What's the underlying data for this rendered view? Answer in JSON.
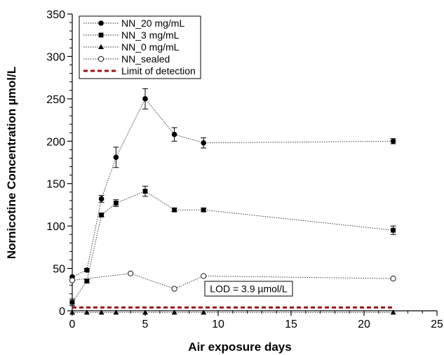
{
  "chart_data": {
    "type": "line",
    "xlabel": "Air exposure days",
    "ylabel": "Nornicotine Concentration µmol/L",
    "xlim": [
      0,
      25
    ],
    "ylim": [
      0,
      350
    ],
    "xticks": [
      0,
      5,
      10,
      15,
      20,
      25
    ],
    "yticks": [
      0,
      50,
      100,
      150,
      200,
      250,
      300,
      350
    ],
    "grid": false,
    "legend_position": "top-left",
    "series": [
      {
        "name": "NN_20 mg/mL",
        "marker": "filled-circle",
        "x": [
          0,
          1,
          2,
          3,
          5,
          7,
          9,
          22
        ],
        "y": [
          40,
          48,
          132,
          181,
          250,
          208,
          198,
          200
        ],
        "err": [
          0,
          2,
          4,
          12,
          12,
          8,
          6,
          3
        ]
      },
      {
        "name": "NN_3 mg/mL",
        "marker": "filled-square",
        "x": [
          0,
          1,
          2,
          3,
          5,
          7,
          9,
          22
        ],
        "y": [
          10,
          35,
          113,
          127,
          141,
          119,
          119,
          95
        ],
        "err": [
          4,
          2,
          2,
          4,
          6,
          2,
          2,
          5
        ]
      },
      {
        "name": "NN_0 mg/mL",
        "marker": "filled-triangle",
        "x": [
          0,
          1,
          2,
          3,
          5,
          7,
          9,
          22
        ],
        "y": [
          -2,
          -2,
          -2,
          -2,
          -2,
          -2,
          -2,
          -2
        ],
        "err": [
          0,
          0,
          0,
          0,
          0,
          0,
          0,
          0
        ]
      },
      {
        "name": "NN_sealed",
        "marker": "open-circle",
        "x": [
          0,
          4,
          7,
          9,
          22
        ],
        "y": [
          36,
          44,
          26,
          41,
          38
        ],
        "err": [
          0,
          0,
          0,
          0,
          0
        ]
      }
    ],
    "reference_line": {
      "name": "Limit of detection",
      "y": 3.9,
      "color": "#a01010",
      "style": "dashed"
    },
    "annotations": [
      {
        "text": "LOD = 3.9 µmol/L"
      }
    ]
  }
}
